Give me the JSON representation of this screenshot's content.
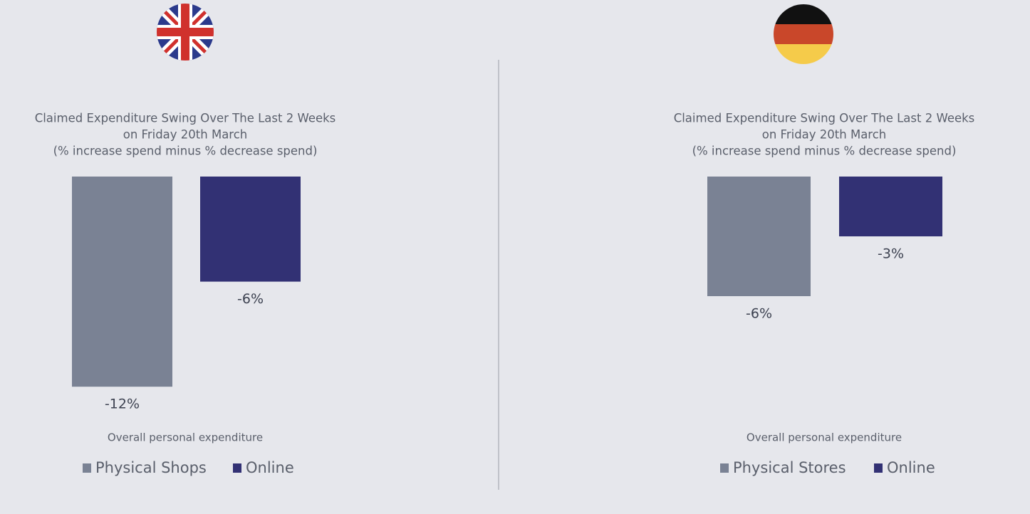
{
  "chart_data": [
    {
      "type": "bar",
      "title": [
        "Claimed Expenditure Swing Over The Last 2 Weeks",
        "on Friday 20th March",
        "(% increase spend minus % decrease spend)"
      ],
      "categories": [
        "Overall personal expenditure"
      ],
      "series": [
        {
          "name": "Physical Shops",
          "color": "#7a8294",
          "values": [
            -12
          ],
          "value_labels": [
            "-12%"
          ]
        },
        {
          "name": "Online",
          "color": "#323174",
          "values": [
            -6
          ],
          "value_labels": [
            "-6%"
          ]
        }
      ]
    },
    {
      "type": "bar",
      "title": [
        "Claimed Expenditure Swing Over The Last 2 Weeks",
        "on Friday 20th March",
        "(% increase spend minus % decrease spend)"
      ],
      "categories": [
        "Overall personal expenditure"
      ],
      "series": [
        {
          "name": "Physical Stores",
          "color": "#7a8294",
          "values": [
            -6
          ],
          "value_labels": [
            "-6%"
          ]
        },
        {
          "name": "Online",
          "color": "#323174",
          "values": [
            -3
          ],
          "value_labels": [
            "-3%"
          ]
        }
      ]
    }
  ]
}
